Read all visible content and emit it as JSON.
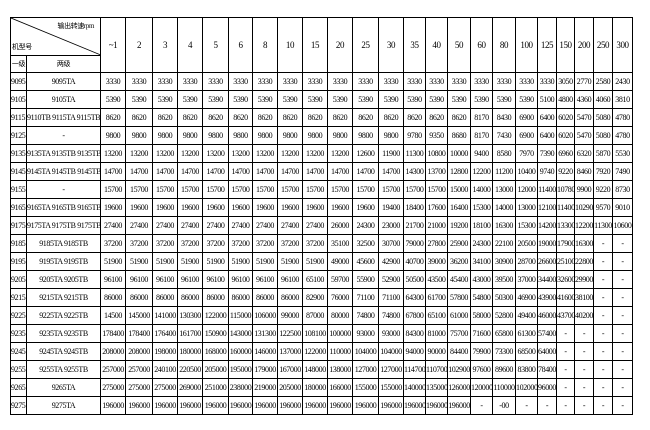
{
  "header": {
    "output_speed_label": "输出转速rpm",
    "model_label": "机型号",
    "stage1_label": "一级",
    "stage2_label": "两级",
    "speeds": [
      "~1",
      "2",
      "3",
      "4",
      "5",
      "6",
      "8",
      "10",
      "15",
      "20",
      "25",
      "30",
      "35",
      "40",
      "50",
      "60",
      "80",
      "100",
      "125",
      "150",
      "200",
      "250",
      "300"
    ]
  },
  "rows": [
    {
      "l1": "9095",
      "l2": "9095TA",
      "values": [
        "3330",
        "3330",
        "3330",
        "3330",
        "3330",
        "3330",
        "3330",
        "3330",
        "3330",
        "3330",
        "3330",
        "3330",
        "3330",
        "3330",
        "3330",
        "3330",
        "3330",
        "3330",
        "3330",
        "3050",
        "2770",
        "2580",
        "2430"
      ]
    },
    {
      "l1": "9105",
      "l2": "9105TA",
      "values": [
        "5390",
        "5390",
        "5390",
        "5390",
        "5390",
        "5390",
        "5390",
        "5390",
        "5390",
        "5390",
        "5390",
        "5390",
        "5390",
        "5390",
        "5390",
        "5390",
        "5390",
        "5390",
        "5100",
        "4800",
        "4360",
        "4060",
        "3810"
      ]
    },
    {
      "l1": "9115",
      "l2": "9110TB 9115TA 9115TB",
      "values": [
        "8620",
        "8620",
        "8620",
        "8620",
        "8620",
        "8620",
        "8620",
        "8620",
        "8620",
        "8620",
        "8620",
        "8620",
        "8620",
        "8620",
        "8620",
        "8170",
        "8430",
        "6900",
        "6400",
        "6020",
        "5470",
        "5080",
        "4780"
      ]
    },
    {
      "l1": "9125",
      "l2": "-",
      "values": [
        "9800",
        "9800",
        "9800",
        "9800",
        "9800",
        "9800",
        "9800",
        "9800",
        "9800",
        "9800",
        "9800",
        "9800",
        "9780",
        "9350",
        "8680",
        "8170",
        "7430",
        "6900",
        "6400",
        "6020",
        "5470",
        "5080",
        "4780"
      ]
    },
    {
      "l1": "9135",
      "l2": "9135TA 9135TB 9135TB",
      "values": [
        "13200",
        "13200",
        "13200",
        "13200",
        "13200",
        "13200",
        "13200",
        "13200",
        "13200",
        "13200",
        "12600",
        "11900",
        "11300",
        "10800",
        "10000",
        "9400",
        "8580",
        "7970",
        "7390",
        "6960",
        "6320",
        "5870",
        "5530"
      ]
    },
    {
      "l1": "9145",
      "l2": "9145TA 9145TB 9145TB",
      "values": [
        "14700",
        "14700",
        "14700",
        "14700",
        "14700",
        "14700",
        "14700",
        "14700",
        "14700",
        "14700",
        "14700",
        "14700",
        "14300",
        "13700",
        "12800",
        "12200",
        "11200",
        "10400",
        "9740",
        "9220",
        "8460",
        "7920",
        "7490"
      ]
    },
    {
      "l1": "9155",
      "l2": "-",
      "values": [
        "15700",
        "15700",
        "15700",
        "15700",
        "15700",
        "15700",
        "15700",
        "15700",
        "15700",
        "15700",
        "15700",
        "15700",
        "15700",
        "15700",
        "15000",
        "14000",
        "13000",
        "12000",
        "11400",
        "10780",
        "9900",
        "9220",
        "8730"
      ]
    },
    {
      "l1": "9165",
      "l2": "9165TA 9165TB 9165TB",
      "values": [
        "19600",
        "19600",
        "19600",
        "19600",
        "19600",
        "19600",
        "19600",
        "19600",
        "19600",
        "19600",
        "19600",
        "19400",
        "18400",
        "17600",
        "16400",
        "15300",
        "14000",
        "13000",
        "12100",
        "11400",
        "10290",
        "9570",
        "9010"
      ]
    },
    {
      "l1": "9175",
      "l2": "9175TA 9175TB 9175TB",
      "values": [
        "27400",
        "27400",
        "27400",
        "27400",
        "27400",
        "27400",
        "27400",
        "27400",
        "27400",
        "26000",
        "24300",
        "23000",
        "21700",
        "21000",
        "19200",
        "18100",
        "16300",
        "15300",
        "14200",
        "13300",
        "12200",
        "11300",
        "10600"
      ]
    },
    {
      "l1": "9185",
      "l2": "9185TA 9185TB",
      "values": [
        "37200",
        "37200",
        "37200",
        "37200",
        "37200",
        "37200",
        "37200",
        "37200",
        "37200",
        "35100",
        "32500",
        "30700",
        "79000",
        "27800",
        "25900",
        "24300",
        "22100",
        "20500",
        "19000",
        "17900",
        "16300",
        "-",
        "-"
      ]
    },
    {
      "l1": "9195",
      "l2": "9195TA 9195TB",
      "values": [
        "51900",
        "51900",
        "51900",
        "51900",
        "51900",
        "51900",
        "51900",
        "51900",
        "51900",
        "49000",
        "45600",
        "42900",
        "40700",
        "39000",
        "36200",
        "34100",
        "30900",
        "28700",
        "26600",
        "25100",
        "22800",
        "-",
        "-"
      ]
    },
    {
      "l1": "9205",
      "l2": "9205TA 9205TB",
      "values": [
        "96100",
        "96100",
        "96100",
        "96100",
        "96100",
        "96100",
        "96100",
        "96100",
        "65100",
        "59700",
        "55900",
        "52900",
        "50500",
        "43500",
        "45400",
        "43000",
        "39500",
        "37000",
        "34400",
        "32600",
        "29900",
        "-",
        "-"
      ]
    },
    {
      "l1": "9215",
      "l2": "9215TA 9215TB",
      "values": [
        "86000",
        "86000",
        "86000",
        "86000",
        "86000",
        "86000",
        "86000",
        "86000",
        "82900",
        "76000",
        "71100",
        "71100",
        "64300",
        "61700",
        "57800",
        "54800",
        "50300",
        "46900",
        "43900",
        "41600",
        "38100",
        "-",
        "-"
      ]
    },
    {
      "l1": "9225",
      "l2": "9225TA 9225TB",
      "values": [
        "14500",
        "145000",
        "141000",
        "130300",
        "122000",
        "115000",
        "106000",
        "99000",
        "87000",
        "80000",
        "74800",
        "74800",
        "67800",
        "65100",
        "61000",
        "58000",
        "52800",
        "49400",
        "46000",
        "43700",
        "40200",
        "-",
        "-"
      ]
    },
    {
      "l1": "9235",
      "l2": "9235TA 9235TB",
      "values": [
        "178400",
        "178400",
        "176400",
        "161700",
        "150900",
        "143000",
        "131300",
        "122500",
        "108100",
        "100000",
        "93000",
        "93000",
        "84300",
        "81000",
        "75700",
        "71600",
        "65800",
        "61300",
        "57400",
        "-",
        "-",
        "-",
        "-"
      ]
    },
    {
      "l1": "9245",
      "l2": "9245TA 9245TB",
      "values": [
        "208000",
        "208000",
        "198000",
        "180000",
        "168000",
        "160000",
        "146000",
        "137000",
        "122000",
        "110000",
        "104000",
        "104000",
        "94000",
        "90000",
        "84400",
        "79900",
        "73300",
        "68500",
        "64000",
        "-",
        "-",
        "-",
        "-"
      ]
    },
    {
      "l1": "9255",
      "l2": "9255TA 9255TB",
      "values": [
        "257000",
        "257000",
        "240100",
        "220500",
        "205000",
        "195000",
        "179000",
        "167000",
        "148000",
        "138000",
        "127000",
        "127000",
        "114700",
        "110700",
        "102900",
        "97600",
        "89600",
        "83800",
        "78400",
        "-",
        "-",
        "-",
        "-"
      ]
    },
    {
      "l1": "9265",
      "l2": "9265TA",
      "values": [
        "275000",
        "275000",
        "275000",
        "269000",
        "251000",
        "238000",
        "219000",
        "205000",
        "180000",
        "166000",
        "155000",
        "155000",
        "140000",
        "135000",
        "126000",
        "120000",
        "110000",
        "102000",
        "96000",
        "-",
        "-",
        "-",
        "-"
      ]
    },
    {
      "l1": "9275",
      "l2": "9275TA",
      "values": [
        "196000",
        "196000",
        "196000",
        "196000",
        "196000",
        "196000",
        "196000",
        "196000",
        "196000",
        "196000",
        "196000",
        "196000",
        "196000",
        "196000",
        "196000",
        "-",
        "-00",
        "-",
        "-",
        "-",
        "-",
        "-",
        "-"
      ]
    }
  ]
}
